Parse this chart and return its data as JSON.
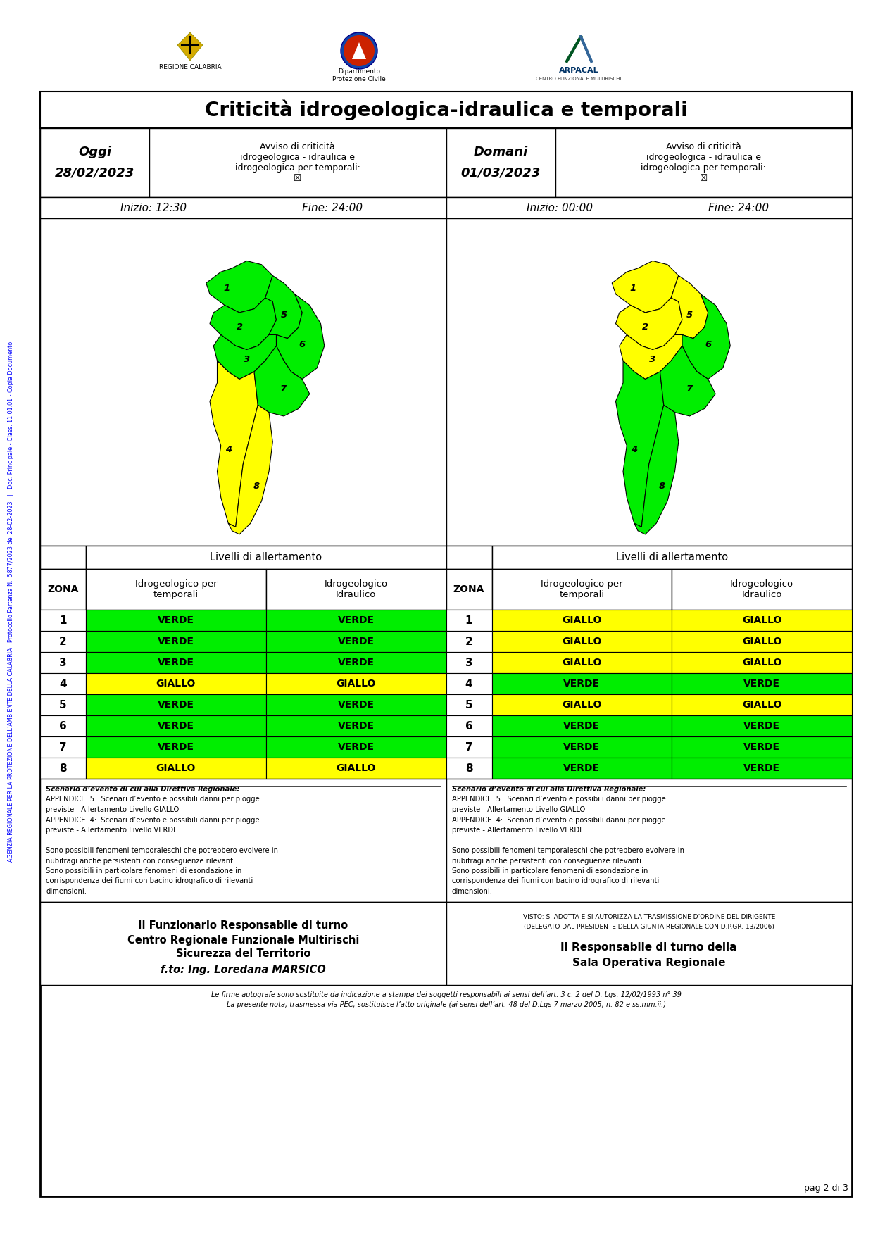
{
  "title": "Criticità idrogeologica-idraulica e temporali",
  "page": "pag 2 di 3",
  "today_date": "28/02/2023",
  "tomorrow_date": "01/03/2023",
  "today_start": "Inizio: 12:30",
  "today_end": "Fine: 24:00",
  "tomorrow_start": "Inizio: 00:00",
  "tomorrow_end": "Fine: 24:00",
  "color_green": "#00EE00",
  "color_yellow": "#FFFF00",
  "color_white": "#FFFFFF",
  "color_black": "#000000",
  "zones": [
    1,
    2,
    3,
    4,
    5,
    6,
    7,
    8
  ],
  "today_idrogeo": [
    "VERDE",
    "VERDE",
    "VERDE",
    "GIALLO",
    "VERDE",
    "VERDE",
    "VERDE",
    "GIALLO"
  ],
  "today_idraulico": [
    "VERDE",
    "VERDE",
    "VERDE",
    "GIALLO",
    "VERDE",
    "VERDE",
    "VERDE",
    "GIALLO"
  ],
  "tomorrow_idrogeo": [
    "GIALLO",
    "GIALLO",
    "GIALLO",
    "VERDE",
    "GIALLO",
    "VERDE",
    "VERDE",
    "VERDE"
  ],
  "tomorrow_idraulico": [
    "GIALLO",
    "GIALLO",
    "GIALLO",
    "VERDE",
    "GIALLO",
    "VERDE",
    "VERDE",
    "VERDE"
  ],
  "scenario_line1": "Scenario d’evento di cui alla Direttiva Regionale:",
  "scenario_line2": "APPENDICE  5:  Scenari d’evento e possibili danni per piogge",
  "scenario_line3": "previste - Allertamento Livello GIALLO.",
  "scenario_line4": "APPENDICE  4:  Scenari d’evento e possibili danni per piogge",
  "scenario_line5": "previste - Allertamento Livello VERDE.",
  "scenario_line6": "",
  "scenario_line7": "Sono possibili fenomeni temporaleschi che potrebbero evolvere in",
  "scenario_line8": "nubifragi anche persistenti con conseguenze rilevanti",
  "scenario_line9": "Sono possibili in particolare fenomeni di esondazione in",
  "scenario_line10": "corrispondenza dei fiumi con bacino idrografico di rilevanti",
  "scenario_line11": "dimensioni.",
  "footer_left_line1": "Il Funzionario Responsabile di turno",
  "footer_left_line2": "Centro Regionale Funzionale Multirischi",
  "footer_left_line3": "Sicurezza del Territorio",
  "footer_left_italic": "f.to: Ing. Loredana MARSICO",
  "footer_right_small1": "VISTO: SI ADOTTA E SI AUTORIZZA LA TRASMISSIONE D’ORDINE DEL DIRIGENTE",
  "footer_right_small2": "(DELEGATO DAL PRESIDENTE DELLA GIUNTA REGIONALE CON D.P.GR. 13/2006)",
  "footer_right_bold1": "Il Responsabile di turno della",
  "footer_right_bold2": "Sala Operativa Regionale",
  "bottom_note1": "Le firme autografe sono sostituite da indicazione a stampa dei soggetti responsabili ai sensi dell’art. 3 c. 2 del D. Lgs. 12/02/1993 n° 39",
  "bottom_note2": "La presente nota, trasmessa via PEC, sostituisce l’atto originale (ai sensi dell’art. 48 del D.Lgs 7 marzo 2005, n. 82 e ss.mm.ii.)",
  "sidebar_line1": "AGENZIA REGIONALE PER LA PROTEZIONE DELL’AMBIENTE DELLA CALABRIA",
  "sidebar_line2": "Protocollo Partenza N.  5877/2023 del 28-02-2023",
  "sidebar_line3": "Doc. Principale - Class. 11.01.01 - Copia Documento",
  "avviso_text": "Avviso di critica\nidrogeologica - idraulica e\nidrogeologica per temporali:\n☒"
}
